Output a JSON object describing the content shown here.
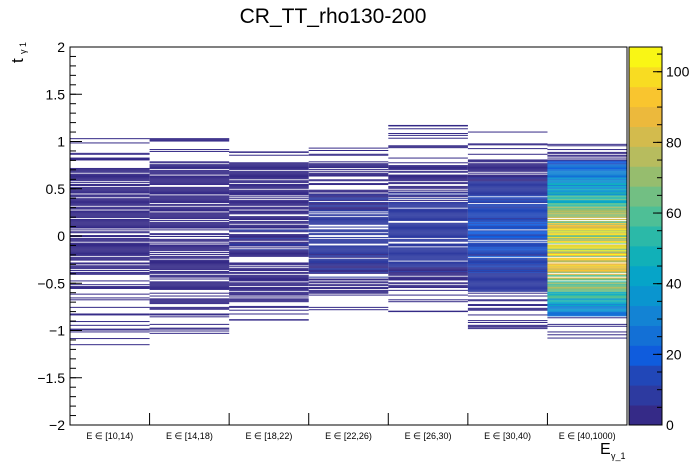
{
  "chart_data": {
    "type": "heatmap",
    "title": "CR_TT_rho130-200",
    "xlabel": "E",
    "xlabel_sub": "γ_1",
    "ylabel": "t",
    "ylabel_sub": "γ 1",
    "categories": [
      "E ∈ [10,14)",
      "E ∈ [14,18)",
      "E ∈ [18,22)",
      "E ∈ [22,26)",
      "E ∈ [26,30)",
      "E ∈ [30,40)",
      "E ∈ [40,1000)"
    ],
    "ylim": [
      -2,
      2
    ],
    "y_ticks": [
      2,
      1.5,
      1,
      0.5,
      0,
      -0.5,
      -1,
      -1.5,
      -2
    ],
    "y_tick_labels": [
      "2",
      "1.5",
      "1",
      "0.5",
      "0",
      "−0.5",
      "−1",
      "−1.5",
      "−2"
    ],
    "zlim": [
      0,
      107
    ],
    "z_ticks": [
      0,
      20,
      40,
      60,
      80,
      100
    ],
    "z_tick_labels": [
      "0",
      "20",
      "40",
      "60",
      "80",
      "100"
    ],
    "columns": [
      {
        "category": "E ∈ [10,14)",
        "ymin": -1.15,
        "ymax": 1.03,
        "core_low": -0.42,
        "core_high": 0.72,
        "peak": 3
      },
      {
        "category": "E ∈ [14,18)",
        "ymin": -1.03,
        "ymax": 1.03,
        "core_low": -0.55,
        "core_high": 0.78,
        "peak": 4
      },
      {
        "category": "E ∈ [18,22)",
        "ymin": -0.89,
        "ymax": 0.89,
        "core_low": -0.7,
        "core_high": 0.78,
        "peak": 5
      },
      {
        "category": "E ∈ [22,26)",
        "ymin": -0.78,
        "ymax": 0.93,
        "core_low": -0.6,
        "core_high": 0.78,
        "peak": 8
      },
      {
        "category": "E ∈ [26,30)",
        "ymin": -0.8,
        "ymax": 1.17,
        "core_low": -0.55,
        "core_high": 0.75,
        "peak": 9
      },
      {
        "category": "E ∈ [30,40)",
        "ymin": -0.98,
        "ymax": 1.1,
        "core_low": -0.6,
        "core_high": 0.75,
        "peak": 16
      },
      {
        "category": "E ∈ [40,1000)",
        "ymin": -1.08,
        "ymax": 0.97,
        "core_low": -0.85,
        "core_high": 0.8,
        "peak": 85
      }
    ]
  },
  "colors": {
    "palette": [
      "#352a87",
      "#2d3aa0",
      "#2147b8",
      "#0f5cdd",
      "#1370d6",
      "#1383d4",
      "#0a95cf",
      "#06a4c8",
      "#11b0b8",
      "#2bb9a8",
      "#4ebf96",
      "#72bf83",
      "#96bd6e",
      "#b7bc5e",
      "#d3bb4d",
      "#ecb93c",
      "#f9c52f",
      "#f8dc22",
      "#f9f615"
    ],
    "background": "#ffffff",
    "axis": "#000000"
  }
}
